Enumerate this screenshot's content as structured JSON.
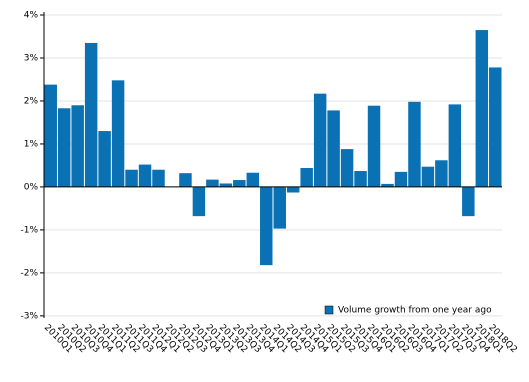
{
  "chart_data": {
    "type": "bar",
    "categories": [
      "2010Q1",
      "2010Q2",
      "2010Q3",
      "2010Q4",
      "2011Q1",
      "2011Q2",
      "2011Q3",
      "2011Q4",
      "2012Q1",
      "2012Q2",
      "2012Q3",
      "2012Q4",
      "2013Q1",
      "2013Q2",
      "2013Q3",
      "2013Q4",
      "2014Q1",
      "2014Q2",
      "2014Q3",
      "2014Q4",
      "2015Q1",
      "2015Q2",
      "2015Q3",
      "2015Q4",
      "2016Q1",
      "2016Q2",
      "2016Q3",
      "2016Q4",
      "2017Q1",
      "2017Q2",
      "2017Q3",
      "2017Q4",
      "2018Q1",
      "2018Q2"
    ],
    "series": [
      {
        "name": "Volume growth from one year ago",
        "color": "#0a71b4",
        "values": [
          2.38,
          1.83,
          1.9,
          3.35,
          1.3,
          2.48,
          0.4,
          0.52,
          0.4,
          0.01,
          0.32,
          -0.68,
          0.17,
          0.08,
          0.16,
          0.33,
          -1.82,
          -0.97,
          -0.13,
          0.44,
          2.17,
          1.78,
          0.88,
          0.37,
          1.89,
          0.07,
          0.35,
          1.98,
          0.47,
          0.62,
          1.92,
          -0.68,
          3.65,
          2.78
        ]
      }
    ],
    "ylim": [
      -3.05,
      4.07
    ],
    "yticks": [
      {
        "value": -3,
        "label": "-3%"
      },
      {
        "value": -2,
        "label": "-2%"
      },
      {
        "value": -1,
        "label": "-1%"
      },
      {
        "value": 0,
        "label": "0%"
      },
      {
        "value": 1,
        "label": "1%"
      },
      {
        "value": 2,
        "label": "2%"
      },
      {
        "value": 3,
        "label": "3%"
      },
      {
        "value": 4,
        "label": "4%"
      }
    ],
    "grid": true,
    "legend": "lower right"
  }
}
